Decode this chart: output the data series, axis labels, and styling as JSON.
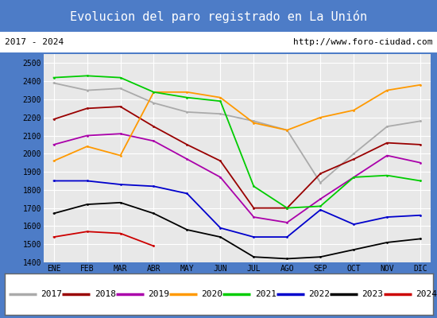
{
  "title": "Evolucion del paro registrado en La Unión",
  "title_bg": "#4d7cc7",
  "subtitle_left": "2017 - 2024",
  "subtitle_right": "http://www.foro-ciudad.com",
  "months": [
    "ENE",
    "FEB",
    "MAR",
    "ABR",
    "MAY",
    "JUN",
    "JUL",
    "AGO",
    "SEP",
    "OCT",
    "NOV",
    "DIC"
  ],
  "ylim": [
    1400,
    2550
  ],
  "yticks": [
    1400,
    1500,
    1600,
    1700,
    1800,
    1900,
    2000,
    2100,
    2200,
    2300,
    2400,
    2500
  ],
  "series": {
    "2017": {
      "color": "#aaaaaa",
      "data": [
        2390,
        2350,
        2360,
        2280,
        2230,
        2220,
        2180,
        2130,
        1840,
        2000,
        2150,
        2180
      ]
    },
    "2018": {
      "color": "#990000",
      "data": [
        2190,
        2250,
        2260,
        2150,
        2050,
        1960,
        1700,
        1700,
        1890,
        1970,
        2060,
        2050
      ]
    },
    "2019": {
      "color": "#aa00aa",
      "data": [
        2050,
        2100,
        2110,
        2070,
        1970,
        1870,
        1650,
        1620,
        1750,
        1870,
        1990,
        1950
      ]
    },
    "2020": {
      "color": "#ff9900",
      "data": [
        1960,
        2040,
        1990,
        2340,
        2340,
        2310,
        2170,
        2130,
        2200,
        2240,
        2350,
        2380
      ]
    },
    "2021": {
      "color": "#00cc00",
      "data": [
        2420,
        2430,
        2420,
        2340,
        2310,
        2290,
        1820,
        1700,
        1710,
        1870,
        1880,
        1850
      ]
    },
    "2022": {
      "color": "#0000cc",
      "data": [
        1850,
        1850,
        1830,
        1820,
        1780,
        1590,
        1540,
        1540,
        1690,
        1610,
        1650,
        1660
      ]
    },
    "2023": {
      "color": "#000000",
      "data": [
        1670,
        1720,
        1730,
        1670,
        1580,
        1540,
        1430,
        1420,
        1430,
        1470,
        1510,
        1530
      ]
    },
    "2024": {
      "color": "#cc0000",
      "data": [
        1540,
        1570,
        1560,
        1490,
        null,
        null,
        null,
        null,
        null,
        null,
        null,
        null
      ]
    }
  },
  "legend_order": [
    "2017",
    "2018",
    "2019",
    "2020",
    "2021",
    "2022",
    "2023",
    "2024"
  ],
  "outer_border": "#4d7cc7",
  "plot_bg": "#e8e8e8"
}
